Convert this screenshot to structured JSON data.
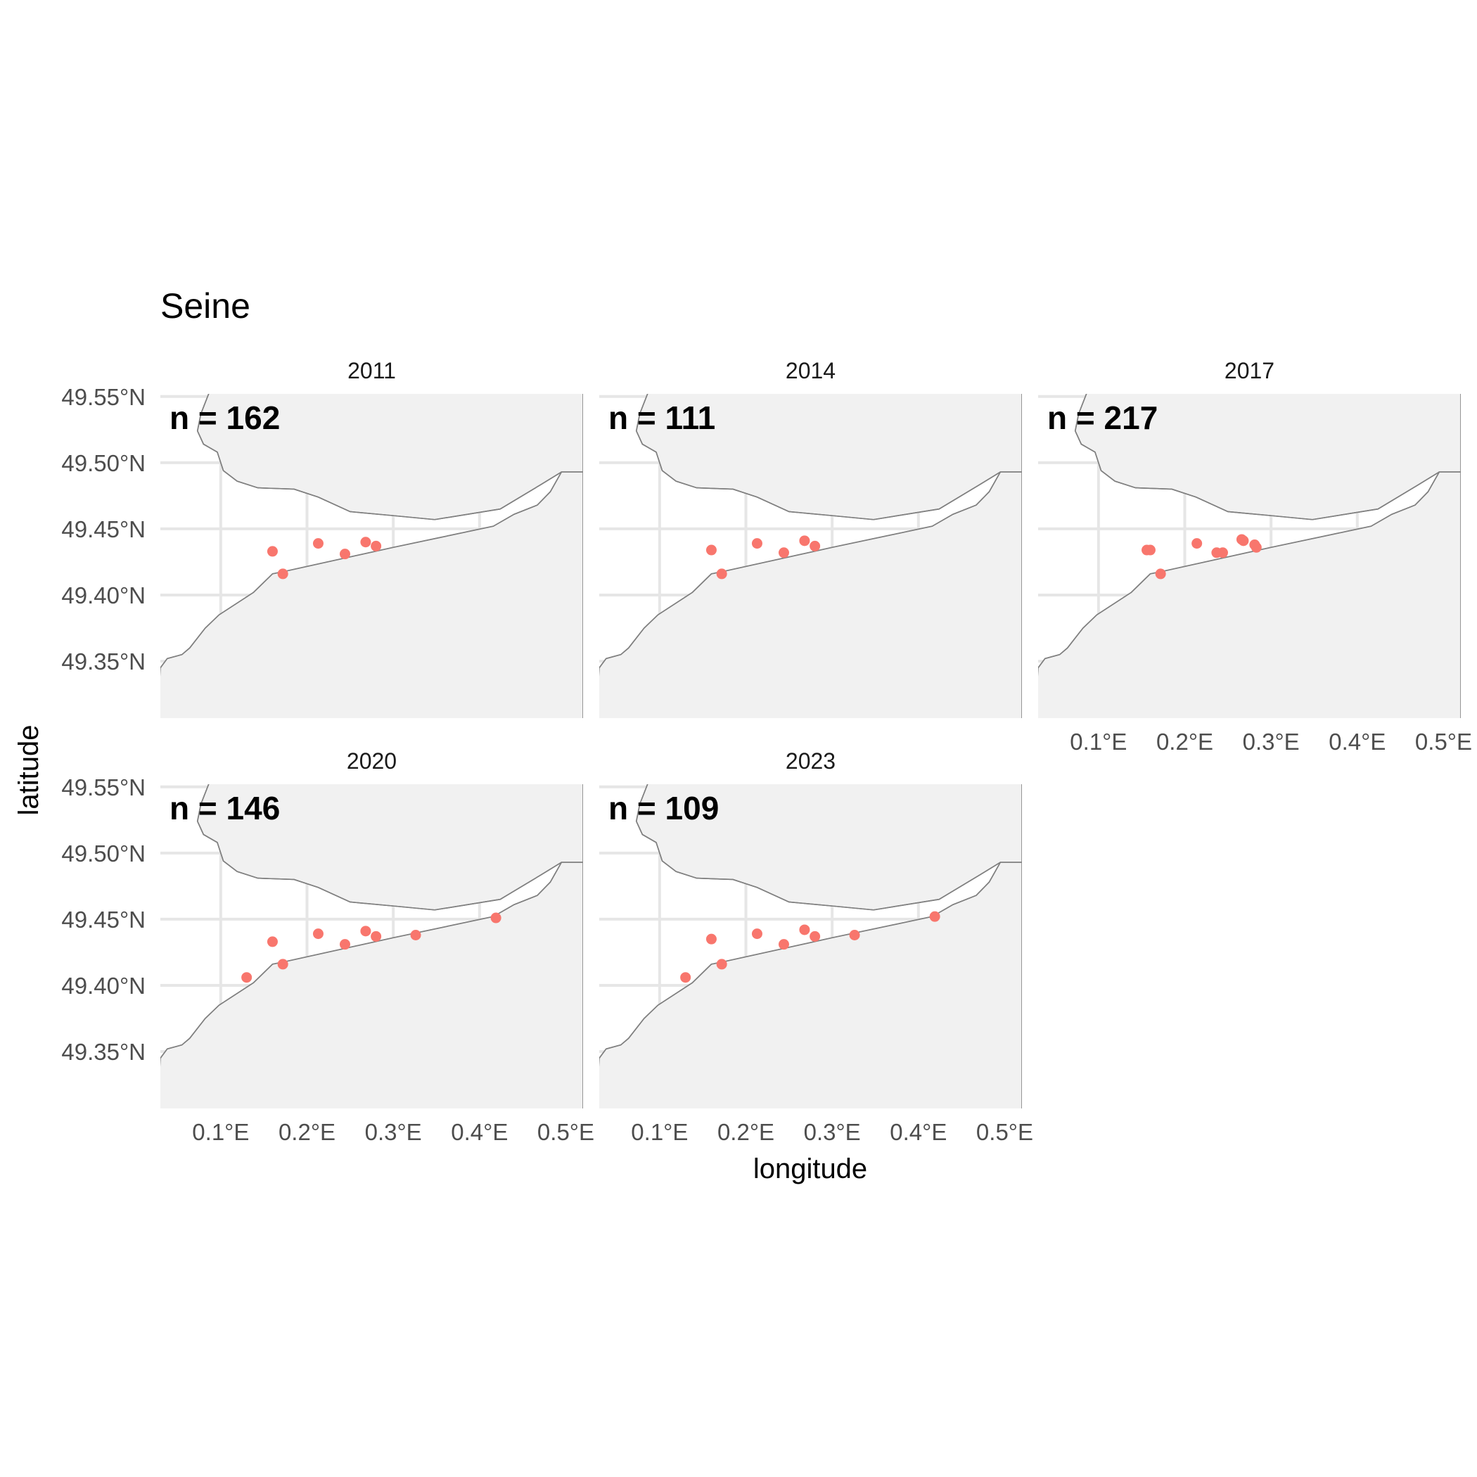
{
  "chart_data": {
    "type": "scatter",
    "title": "Seine",
    "xlabel": "longitude",
    "ylabel": "latitude",
    "xlim": [
      0.03,
      0.52
    ],
    "ylim": [
      49.307,
      49.552
    ],
    "x_ticks": [
      {
        "value": 0.1,
        "label": "0.1°E"
      },
      {
        "value": 0.2,
        "label": "0.2°E"
      },
      {
        "value": 0.3,
        "label": "0.3°E"
      },
      {
        "value": 0.4,
        "label": "0.4°E"
      },
      {
        "value": 0.5,
        "label": "0.5°E"
      }
    ],
    "y_ticks": [
      {
        "value": 49.35,
        "label": "49.35°N"
      },
      {
        "value": 49.4,
        "label": "49.40°N"
      },
      {
        "value": 49.45,
        "label": "49.45°N"
      },
      {
        "value": 49.5,
        "label": "49.50°N"
      },
      {
        "value": 49.55,
        "label": "49.55°N"
      }
    ],
    "grid": true,
    "colors": {
      "point": "#F8766D",
      "land": "#f1f1f1",
      "coast": "#7f7f7f",
      "grid": "#e6e6e6"
    },
    "panels": [
      {
        "year": "2011",
        "n_label": "n = 162",
        "points": [
          [
            0.16,
            49.433
          ],
          [
            0.172,
            49.416
          ],
          [
            0.213,
            49.439
          ],
          [
            0.244,
            49.431
          ],
          [
            0.268,
            49.44
          ],
          [
            0.28,
            49.437
          ]
        ]
      },
      {
        "year": "2014",
        "n_label": "n = 111",
        "points": [
          [
            0.16,
            49.434
          ],
          [
            0.172,
            49.416
          ],
          [
            0.213,
            49.439
          ],
          [
            0.244,
            49.432
          ],
          [
            0.268,
            49.441
          ],
          [
            0.28,
            49.437
          ]
        ]
      },
      {
        "year": "2017",
        "n_label": "n = 217",
        "points": [
          [
            0.156,
            49.434
          ],
          [
            0.16,
            49.434
          ],
          [
            0.172,
            49.416
          ],
          [
            0.214,
            49.439
          ],
          [
            0.237,
            49.432
          ],
          [
            0.244,
            49.432
          ],
          [
            0.266,
            49.442
          ],
          [
            0.268,
            49.441
          ],
          [
            0.281,
            49.438
          ],
          [
            0.283,
            49.436
          ]
        ]
      },
      {
        "year": "2020",
        "n_label": "n = 146",
        "points": [
          [
            0.13,
            49.406
          ],
          [
            0.16,
            49.433
          ],
          [
            0.172,
            49.416
          ],
          [
            0.213,
            49.439
          ],
          [
            0.244,
            49.431
          ],
          [
            0.268,
            49.441
          ],
          [
            0.28,
            49.437
          ],
          [
            0.326,
            49.438
          ],
          [
            0.419,
            49.451
          ]
        ]
      },
      {
        "year": "2023",
        "n_label": "n = 109",
        "points": [
          [
            0.13,
            49.406
          ],
          [
            0.16,
            49.435
          ],
          [
            0.172,
            49.416
          ],
          [
            0.213,
            49.439
          ],
          [
            0.244,
            49.431
          ],
          [
            0.268,
            49.442
          ],
          [
            0.28,
            49.437
          ],
          [
            0.326,
            49.438
          ],
          [
            0.419,
            49.452
          ]
        ]
      }
    ],
    "coast_north": [
      [
        0.086,
        49.552
      ],
      [
        0.077,
        49.537
      ],
      [
        0.073,
        49.524
      ],
      [
        0.08,
        49.514
      ],
      [
        0.096,
        49.508
      ],
      [
        0.103,
        49.494
      ],
      [
        0.119,
        49.486
      ],
      [
        0.143,
        49.481
      ],
      [
        0.185,
        49.48
      ],
      [
        0.213,
        49.474
      ],
      [
        0.25,
        49.463
      ],
      [
        0.3,
        49.46
      ],
      [
        0.348,
        49.457
      ],
      [
        0.424,
        49.465
      ],
      [
        0.47,
        49.483
      ],
      [
        0.495,
        49.493
      ]
    ],
    "coast_south": [
      [
        0.03,
        49.345
      ],
      [
        0.038,
        49.352
      ],
      [
        0.055,
        49.355
      ],
      [
        0.064,
        49.36
      ],
      [
        0.082,
        49.375
      ],
      [
        0.098,
        49.385
      ],
      [
        0.138,
        49.402
      ],
      [
        0.16,
        49.416
      ],
      [
        0.175,
        49.418
      ],
      [
        0.3,
        49.436
      ],
      [
        0.416,
        49.452
      ],
      [
        0.44,
        49.461
      ],
      [
        0.467,
        49.468
      ],
      [
        0.482,
        49.478
      ],
      [
        0.495,
        49.493
      ]
    ]
  }
}
